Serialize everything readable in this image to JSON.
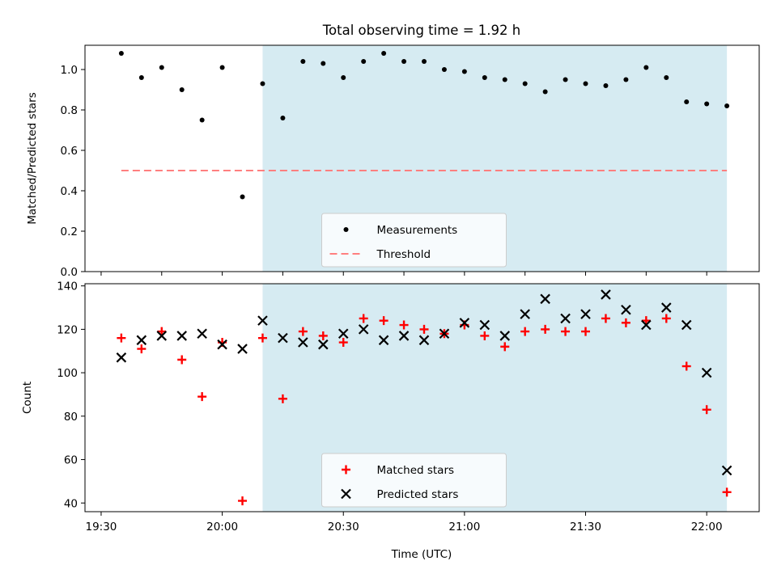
{
  "figure": {
    "title": "Total observing time = 1.92 h",
    "xlabel": "Time (UTC)",
    "colors": {
      "measurement": "#000000",
      "threshold": "#ff7f7f",
      "matched": "#ff0000",
      "predicted": "#000000",
      "window": "#add8e6"
    }
  },
  "chart_data": [
    {
      "type": "scatter",
      "ylabel": "Matched/Predicted stars",
      "ylim": [
        0,
        1.12
      ],
      "yticks": [
        0.0,
        0.2,
        0.4,
        0.6,
        0.8,
        1.0
      ],
      "ytick_labels": [
        "0.0",
        "0.2",
        "0.4",
        "0.6",
        "0.8",
        "1.0"
      ],
      "xlim": [
        "19:26",
        "22:13"
      ],
      "xticks": [
        "19:30",
        "19:45",
        "20:00",
        "20:15",
        "20:30",
        "20:45",
        "21:00",
        "21:15",
        "21:30",
        "21:45",
        "22:00"
      ],
      "xtick_labels": [
        "",
        "",
        "",
        "",
        "",
        "",
        "",
        "",
        "",
        "",
        ""
      ],
      "shaded_span": [
        "20:10",
        "22:05"
      ],
      "legend_position": "lower center",
      "series": [
        {
          "name": "Measurements",
          "marker": "dot",
          "x": [
            "19:35",
            "19:40",
            "19:45",
            "19:50",
            "19:55",
            "20:00",
            "20:05",
            "20:10",
            "20:15",
            "20:20",
            "20:25",
            "20:30",
            "20:35",
            "20:40",
            "20:45",
            "20:50",
            "20:55",
            "21:00",
            "21:05",
            "21:10",
            "21:15",
            "21:20",
            "21:25",
            "21:30",
            "21:35",
            "21:40",
            "21:45",
            "21:50",
            "21:55",
            "22:00",
            "22:05"
          ],
          "values": [
            1.08,
            0.96,
            1.01,
            0.9,
            0.75,
            1.01,
            0.37,
            0.93,
            0.76,
            1.04,
            1.03,
            0.96,
            1.04,
            1.08,
            1.04,
            1.04,
            1.0,
            0.99,
            0.96,
            0.95,
            0.93,
            0.89,
            0.95,
            0.93,
            0.92,
            0.95,
            1.01,
            0.96,
            0.84,
            0.83,
            0.82
          ]
        },
        {
          "name": "Threshold",
          "marker": "dashed-line",
          "x": [
            "19:35",
            "22:05"
          ],
          "values": [
            0.5,
            0.5
          ]
        }
      ]
    },
    {
      "type": "scatter",
      "ylabel": "Count",
      "ylim": [
        36,
        141
      ],
      "yticks": [
        40,
        60,
        80,
        100,
        120,
        140
      ],
      "ytick_labels": [
        "40",
        "60",
        "80",
        "100",
        "120",
        "140"
      ],
      "xlim": [
        "19:26",
        "22:13"
      ],
      "xticks": [
        "19:30",
        "20:00",
        "20:30",
        "21:00",
        "21:30",
        "22:00"
      ],
      "xtick_labels": [
        "19:30",
        "20:00",
        "20:30",
        "21:00",
        "21:30",
        "22:00"
      ],
      "shaded_span": [
        "20:10",
        "22:05"
      ],
      "legend_position": "lower center",
      "series": [
        {
          "name": "Matched stars",
          "marker": "plus",
          "x": [
            "19:35",
            "19:40",
            "19:45",
            "19:50",
            "19:55",
            "20:00",
            "20:05",
            "20:10",
            "20:15",
            "20:20",
            "20:25",
            "20:30",
            "20:35",
            "20:40",
            "20:45",
            "20:50",
            "20:55",
            "21:00",
            "21:05",
            "21:10",
            "21:15",
            "21:20",
            "21:25",
            "21:30",
            "21:35",
            "21:40",
            "21:45",
            "21:50",
            "21:55",
            "22:00",
            "22:05"
          ],
          "values": [
            116,
            111,
            119,
            106,
            89,
            114,
            41,
            116,
            88,
            119,
            117,
            114,
            125,
            124,
            122,
            120,
            118,
            122,
            117,
            112,
            119,
            120,
            119,
            119,
            125,
            123,
            124,
            125,
            103,
            83,
            45
          ]
        },
        {
          "name": "Predicted stars",
          "marker": "x",
          "x": [
            "19:35",
            "19:40",
            "19:45",
            "19:50",
            "19:55",
            "20:00",
            "20:05",
            "20:10",
            "20:15",
            "20:20",
            "20:25",
            "20:30",
            "20:35",
            "20:40",
            "20:45",
            "20:50",
            "20:55",
            "21:00",
            "21:05",
            "21:10",
            "21:15",
            "21:20",
            "21:25",
            "21:30",
            "21:35",
            "21:40",
            "21:45",
            "21:50",
            "21:55",
            "22:00",
            "22:05"
          ],
          "values": [
            107,
            115,
            117,
            117,
            118,
            113,
            111,
            124,
            116,
            114,
            113,
            118,
            120,
            115,
            117,
            115,
            118,
            123,
            122,
            117,
            127,
            134,
            125,
            127,
            136,
            129,
            122,
            130,
            122,
            100,
            55
          ]
        }
      ]
    }
  ]
}
